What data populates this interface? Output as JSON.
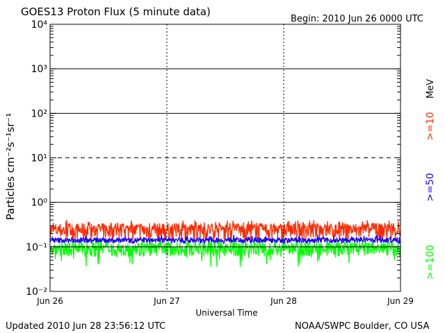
{
  "chart_data": {
    "type": "line",
    "title": "GOES13 Proton Flux (5 minute data)",
    "begin_label": "Begin: 2010 Jun 26 0000 UTC",
    "xlabel": "Universal Time",
    "ylabel": "Particles cm⁻²s⁻¹sr⁻¹",
    "unit_label": "MeV",
    "yscale": "log",
    "ylim_exponents": [
      -2,
      4
    ],
    "y_tick_labels": [
      "10⁻²",
      "10⁻¹",
      "10⁰",
      "10¹",
      "10²",
      "10³",
      "10⁴"
    ],
    "x_tick_labels": [
      "Jun 26",
      "Jun 27",
      "Jun 28",
      "Jun 29"
    ],
    "xlim_days": [
      0,
      3
    ],
    "data_end_day": 3.0,
    "threshold_lines": [
      {
        "value": 10,
        "style": "dashed"
      }
    ],
    "grid_lines_solid": [
      1,
      100,
      1000
    ],
    "series": [
      {
        "name": ">=10",
        "color": "#ff2a00",
        "base": 0.24,
        "spread": 0.1,
        "spike": 0.4
      },
      {
        "name": ">=50",
        "color": "#1a00ff",
        "base": 0.14,
        "spread": 0.02,
        "spike": 0.18
      },
      {
        "name": ">=100",
        "color": "#00ff00",
        "base": 0.095,
        "spread": 0.035,
        "dip": 0.035
      }
    ]
  },
  "footer": {
    "updated": "Updated 2010 Jun 28 23:56:12 UTC",
    "source": "NOAA/SWPC Boulder, CO USA"
  },
  "colors": {
    "axis": "#000000",
    "background": "#ffffff"
  }
}
